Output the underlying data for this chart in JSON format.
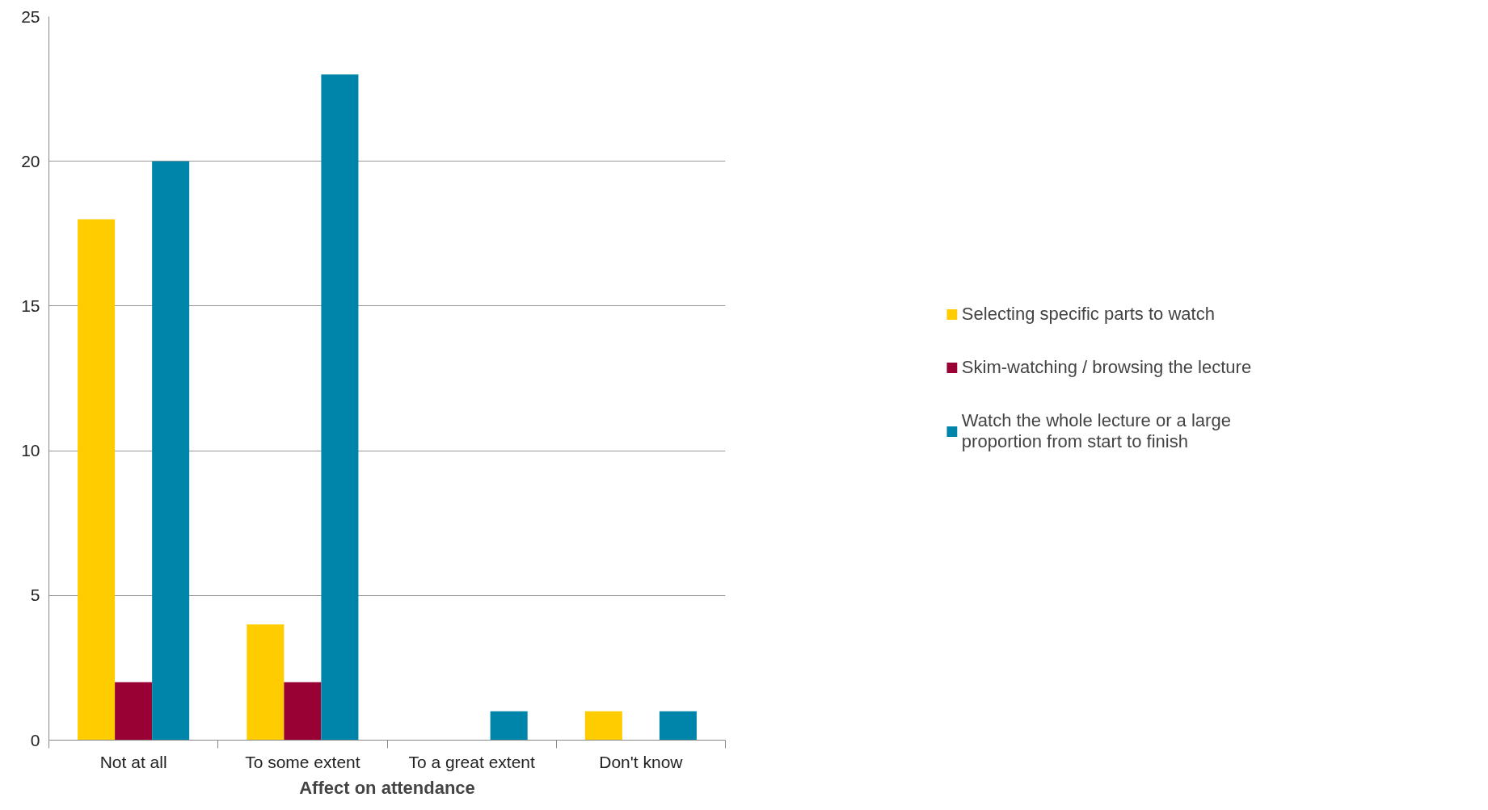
{
  "chart_data": {
    "type": "bar",
    "xlabel": "Affect on attendance",
    "categories": [
      "Not at all",
      "To some extent",
      "To a great extent",
      "Don't know"
    ],
    "series": [
      {
        "name": "Selecting specific parts to watch",
        "color": "#ffcc00",
        "values": [
          18,
          4,
          0,
          1
        ]
      },
      {
        "name": "Skim-watching / browsing the lecture",
        "color": "#990033",
        "values": [
          2,
          2,
          0,
          0
        ]
      },
      {
        "name": "Watch the whole lecture or a large proportion from start to finish",
        "color": "#0085aa",
        "values": [
          20,
          23,
          1,
          1
        ]
      }
    ],
    "ylim": [
      0,
      25
    ],
    "yticks": [
      0,
      5,
      10,
      15,
      20,
      25
    ],
    "grid": "y",
    "legend": "right"
  }
}
